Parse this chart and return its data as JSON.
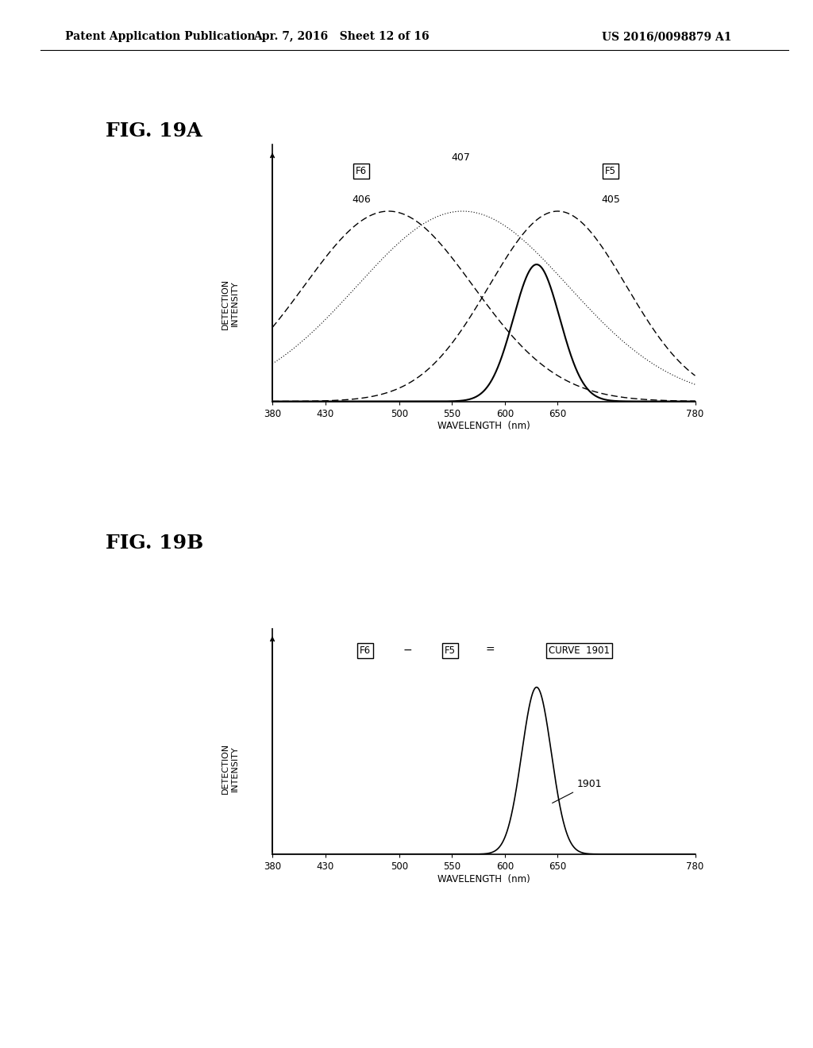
{
  "header_left": "Patent Application Publication",
  "header_mid": "Apr. 7, 2016   Sheet 12 of 16",
  "header_right": "US 2016/0098879 A1",
  "fig_a_label": "FIG. 19A",
  "fig_b_label": "FIG. 19B",
  "xlabel": "WAVELENGTH  (nm)",
  "ylabel": "DETECTION\nINTENSITY",
  "xticks": [
    380,
    430,
    500,
    550,
    600,
    650,
    780
  ],
  "background_color": "#ffffff",
  "text_color": "#000000",
  "F6_label": "F6",
  "F5_label": "F5",
  "label_406": "406",
  "label_407": "407",
  "label_405": "405",
  "label_1901": "1901",
  "curve_a_f6_mu": 490,
  "curve_a_f6_sigma": 80,
  "curve_a_f5_mu": 650,
  "curve_a_f5_sigma": 65,
  "curve_a_407_mu": 560,
  "curve_a_407_sigma": 100,
  "curve_a_narrow_mu": 630,
  "curve_a_narrow_sigma": 22,
  "curve_b_mu": 630,
  "curve_b_sigma": 14
}
